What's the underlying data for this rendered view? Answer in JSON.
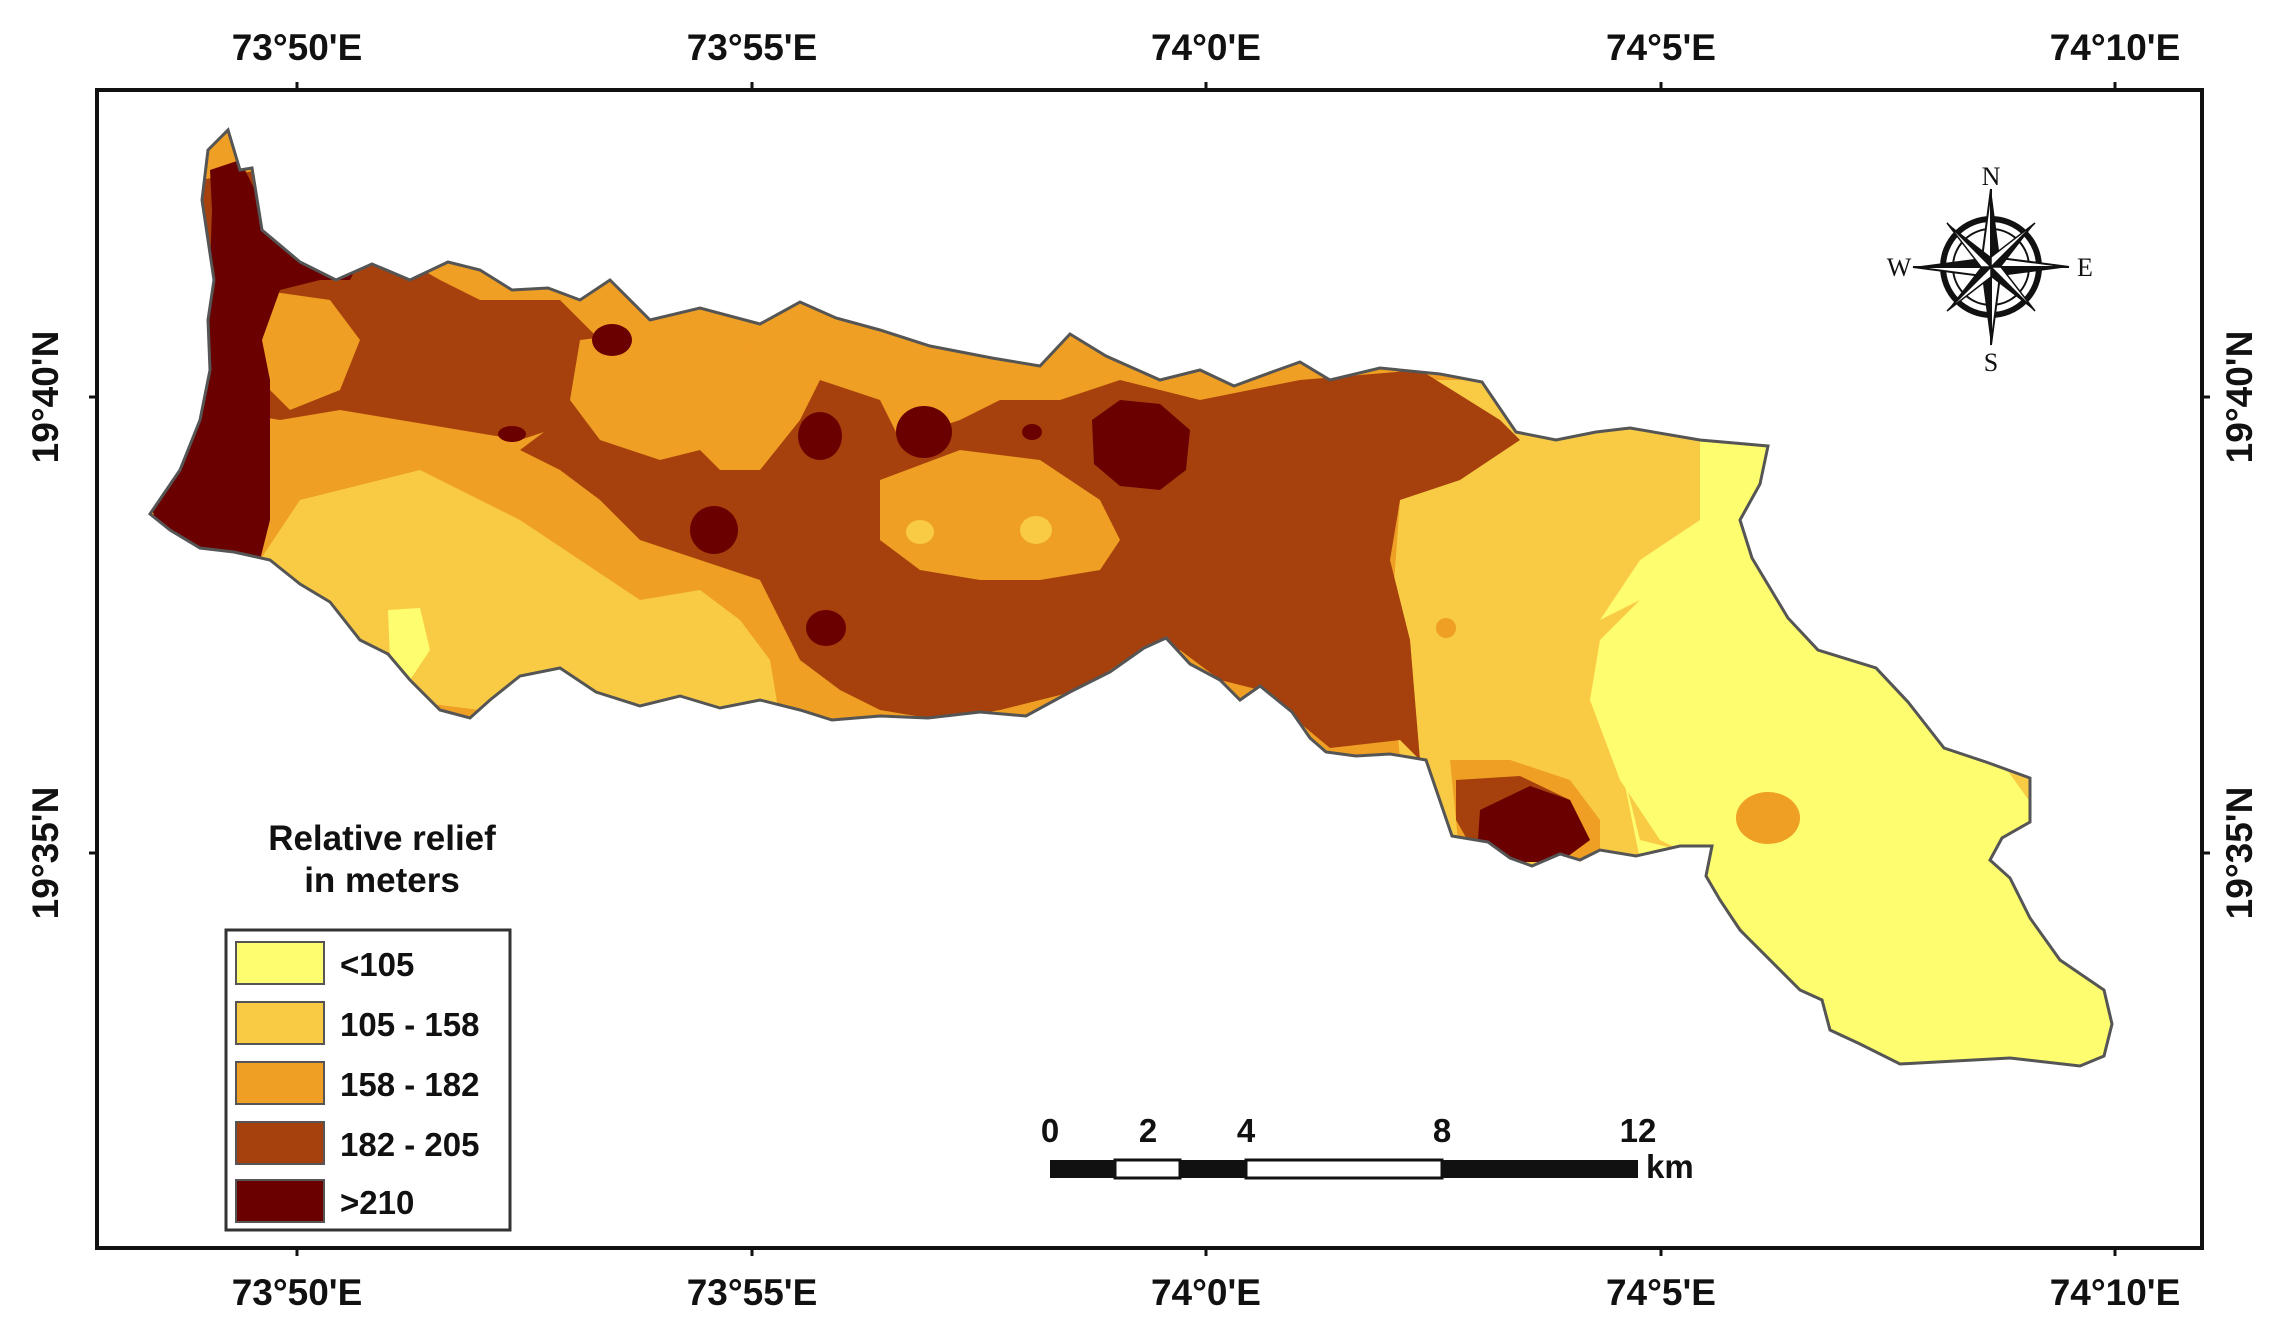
{
  "colors": {
    "class_1": "#fdfd6f",
    "class_2": "#f9cb45",
    "class_3": "#ef9f23",
    "class_4": "#a6400c",
    "class_5": "#6a0000",
    "boundary": "#555555",
    "frame": "#111111"
  },
  "graticule": {
    "longitude_labels": [
      "73°50'E",
      "73°55'E",
      "74°0'E",
      "74°5'E",
      "74°10'E"
    ],
    "latitude_labels": [
      "19°40'N",
      "19°35'N"
    ]
  },
  "legend": {
    "title_line1": "Relative relief",
    "title_line2": "in meters",
    "classes": [
      {
        "label": "<105",
        "color": "#fdfd6f"
      },
      {
        "label": "105 - 158",
        "color": "#f9cb45"
      },
      {
        "label": "158 - 182",
        "color": "#ef9f23"
      },
      {
        "label": "182 - 205",
        "color": "#a6400c"
      },
      {
        "label": ">210",
        "color": "#6a0000"
      }
    ]
  },
  "scale_bar": {
    "labels": [
      "0",
      "2",
      "4",
      "8",
      "12"
    ],
    "unit": "km"
  },
  "north_arrow": {
    "n": "N",
    "e": "E",
    "s": "S",
    "w": "W"
  }
}
